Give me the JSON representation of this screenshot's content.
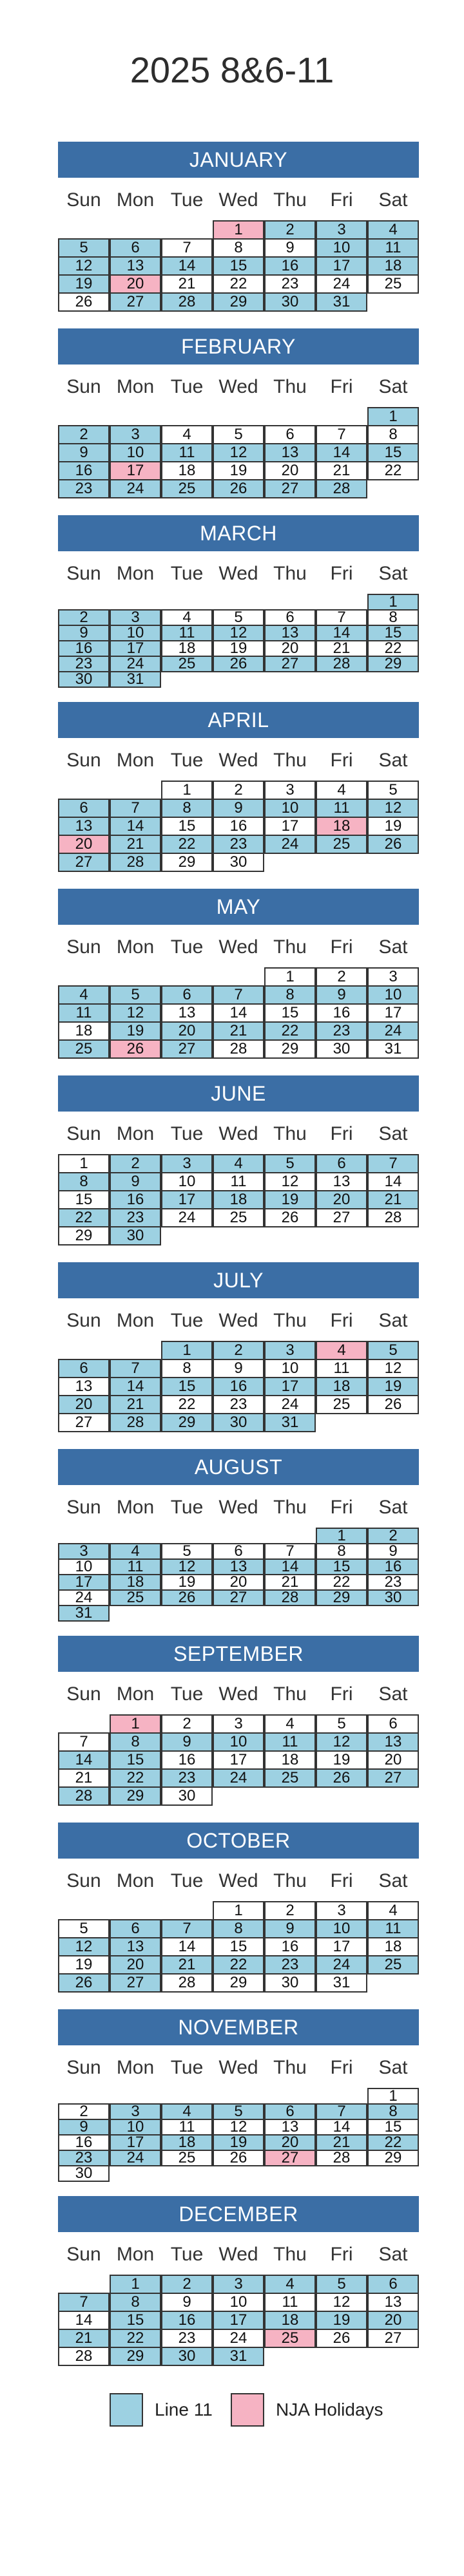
{
  "title": "2025 8&6-11",
  "days_of_week": [
    "Sun",
    "Mon",
    "Tue",
    "Wed",
    "Thu",
    "Fri",
    "Sat"
  ],
  "colors": {
    "header": "#3b6ea5",
    "line11": "#9dd1e2",
    "holiday": "#f6b3c3"
  },
  "legend": [
    {
      "label": "Line 11",
      "color": "#9dd1e2"
    },
    {
      "label": "NJA Holidays",
      "color": "#f6b3c3"
    }
  ],
  "months": [
    {
      "name": "JANUARY",
      "first_weekday": 3,
      "days": 31,
      "line11": [
        2,
        3,
        4,
        5,
        6,
        10,
        11,
        12,
        13,
        14,
        15,
        16,
        17,
        18,
        19,
        27,
        28,
        29,
        30,
        31
      ],
      "holidays": [
        1,
        20
      ]
    },
    {
      "name": "FEBRUARY",
      "first_weekday": 6,
      "days": 28,
      "line11": [
        1,
        2,
        3,
        9,
        10,
        11,
        12,
        13,
        14,
        15,
        16,
        23,
        24,
        25,
        26,
        27,
        28
      ],
      "holidays": [
        17
      ]
    },
    {
      "name": "MARCH",
      "first_weekday": 6,
      "days": 31,
      "line11": [
        1,
        2,
        3,
        9,
        10,
        11,
        12,
        13,
        14,
        15,
        16,
        17,
        23,
        24,
        25,
        26,
        27,
        28,
        29,
        30,
        31
      ],
      "holidays": []
    },
    {
      "name": "APRIL",
      "first_weekday": 2,
      "days": 30,
      "line11": [
        6,
        7,
        8,
        9,
        10,
        11,
        12,
        13,
        14,
        21,
        22,
        23,
        24,
        25,
        26,
        27,
        28
      ],
      "holidays": [
        18,
        20
      ]
    },
    {
      "name": "MAY",
      "first_weekday": 4,
      "days": 31,
      "line11": [
        4,
        5,
        6,
        7,
        8,
        9,
        10,
        11,
        12,
        19,
        20,
        21,
        22,
        23,
        24,
        25,
        27
      ],
      "holidays": [
        26
      ]
    },
    {
      "name": "JUNE",
      "first_weekday": 0,
      "days": 30,
      "line11": [
        2,
        3,
        4,
        5,
        6,
        7,
        8,
        9,
        16,
        17,
        18,
        19,
        20,
        21,
        22,
        23,
        30
      ],
      "holidays": []
    },
    {
      "name": "JULY",
      "first_weekday": 2,
      "days": 31,
      "line11": [
        1,
        2,
        3,
        5,
        6,
        7,
        14,
        15,
        16,
        17,
        18,
        19,
        20,
        21,
        28,
        29,
        30,
        31
      ],
      "holidays": [
        4
      ]
    },
    {
      "name": "AUGUST",
      "first_weekday": 5,
      "days": 31,
      "line11": [
        1,
        2,
        3,
        4,
        11,
        12,
        13,
        14,
        15,
        16,
        17,
        18,
        25,
        26,
        27,
        28,
        29,
        30,
        31
      ],
      "holidays": []
    },
    {
      "name": "SEPTEMBER",
      "first_weekday": 1,
      "days": 30,
      "line11": [
        8,
        9,
        10,
        11,
        12,
        13,
        14,
        15,
        22,
        23,
        24,
        25,
        26,
        27,
        28,
        29
      ],
      "holidays": [
        1
      ]
    },
    {
      "name": "OCTOBER",
      "first_weekday": 3,
      "days": 31,
      "line11": [
        6,
        7,
        8,
        9,
        10,
        11,
        12,
        13,
        20,
        21,
        22,
        23,
        24,
        25,
        26,
        27
      ],
      "holidays": []
    },
    {
      "name": "NOVEMBER",
      "first_weekday": 6,
      "days": 30,
      "line11": [
        3,
        4,
        5,
        6,
        7,
        8,
        9,
        10,
        17,
        18,
        19,
        20,
        21,
        22,
        23,
        24
      ],
      "holidays": [
        27
      ]
    },
    {
      "name": "DECEMBER",
      "first_weekday": 1,
      "days": 31,
      "line11": [
        1,
        2,
        3,
        4,
        5,
        6,
        7,
        8,
        15,
        16,
        17,
        18,
        19,
        20,
        21,
        22,
        29,
        30,
        31
      ],
      "holidays": [
        25
      ]
    }
  ]
}
